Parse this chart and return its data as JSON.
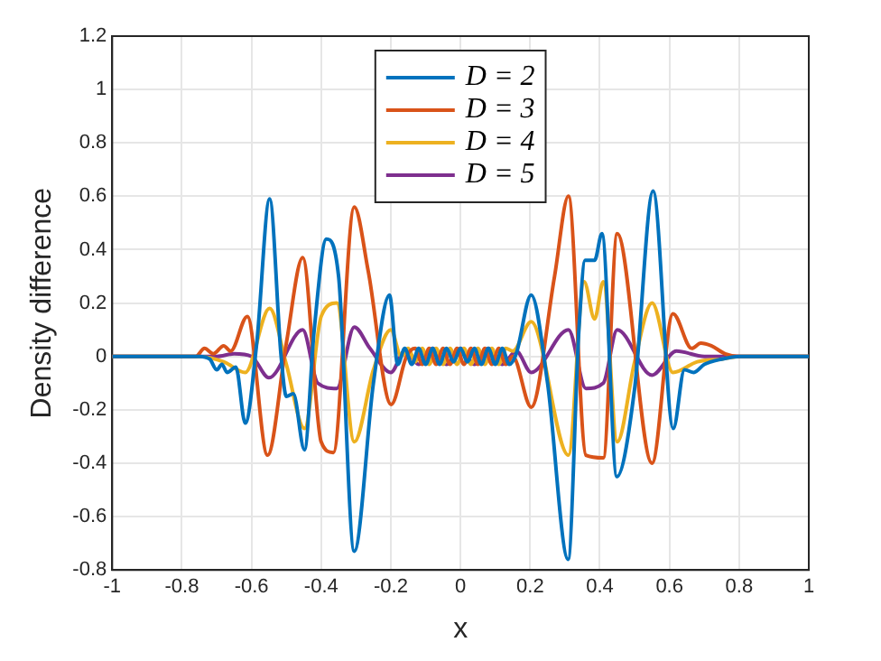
{
  "chart_data": {
    "type": "line",
    "xlabel": "x",
    "ylabel": "Density difference",
    "xlim": [
      -1,
      1
    ],
    "ylim": [
      -0.8,
      1.2
    ],
    "xticks": [
      -1,
      -0.8,
      -0.6,
      -0.4,
      -0.2,
      0,
      0.2,
      0.4,
      0.6,
      0.8,
      1
    ],
    "yticks": [
      -0.8,
      -0.6,
      -0.4,
      -0.2,
      0,
      0.2,
      0.4,
      0.6,
      0.8,
      1,
      1.2
    ],
    "grid": true,
    "legend": "top",
    "marker": "none",
    "line_style": "solid",
    "series": [
      {
        "name": "D = 2",
        "color": "#0072bd",
        "x": [
          -1,
          -0.75,
          -0.72,
          -0.7,
          -0.685,
          -0.67,
          -0.645,
          -0.618,
          -0.585,
          -0.548,
          -0.515,
          -0.5,
          -0.48,
          -0.448,
          -0.42,
          -0.385,
          -0.35,
          -0.305,
          -0.25,
          -0.204,
          -0.18,
          -0.16,
          -0.14,
          -0.12,
          -0.1,
          -0.08,
          -0.06,
          -0.04,
          -0.02,
          0,
          0.02,
          0.04,
          0.06,
          0.08,
          0.1,
          0.12,
          0.14,
          0.16,
          0.203,
          0.25,
          0.309,
          0.34,
          0.358,
          0.385,
          0.406,
          0.449,
          0.5,
          0.553,
          0.611,
          0.643,
          0.67,
          0.7,
          0.75,
          0.8,
          1
        ],
        "values": [
          0,
          0,
          -0.01,
          -0.05,
          -0.03,
          -0.06,
          -0.04,
          -0.25,
          0.05,
          0.59,
          0,
          -0.15,
          -0.14,
          -0.35,
          0.1,
          0.44,
          0.3,
          -0.73,
          -0.1,
          0.23,
          -0.03,
          0.03,
          -0.03,
          0.03,
          -0.03,
          0.03,
          -0.03,
          0.03,
          -0.02,
          0.03,
          -0.02,
          0.03,
          -0.03,
          0.03,
          -0.03,
          0.03,
          -0.03,
          0.01,
          0.23,
          -0.1,
          -0.76,
          0.1,
          0.36,
          0.36,
          0.46,
          -0.45,
          -0.12,
          0.62,
          -0.27,
          -0.05,
          -0.06,
          -0.03,
          -0.01,
          0,
          0
        ]
      },
      {
        "name": "D = 3",
        "color": "#d95319",
        "x": [
          -1,
          -0.76,
          -0.735,
          -0.71,
          -0.68,
          -0.66,
          -0.612,
          -0.554,
          -0.5,
          -0.453,
          -0.4,
          -0.365,
          -0.305,
          -0.265,
          -0.199,
          -0.155,
          -0.13,
          -0.11,
          -0.09,
          -0.07,
          -0.05,
          -0.03,
          -0.01,
          0.01,
          0.03,
          0.05,
          0.07,
          0.09,
          0.11,
          0.13,
          0.15,
          0.203,
          0.27,
          0.31,
          0.36,
          0.41,
          0.45,
          0.55,
          0.61,
          0.664,
          0.69,
          0.72,
          0.76,
          0.8,
          1
        ],
        "values": [
          0,
          0,
          0.03,
          0.01,
          0.04,
          0.02,
          0.15,
          -0.37,
          0.05,
          0.37,
          -0.32,
          -0.36,
          0.56,
          0.32,
          -0.18,
          0,
          0.03,
          -0.03,
          0.03,
          -0.03,
          0.03,
          -0.03,
          0.03,
          -0.03,
          0.03,
          -0.03,
          0.03,
          -0.03,
          0.03,
          -0.03,
          0,
          -0.19,
          0.3,
          0.6,
          -0.37,
          -0.38,
          0.46,
          -0.4,
          0.16,
          0.03,
          0.05,
          0.04,
          0.01,
          0,
          0
        ]
      },
      {
        "name": "D = 4",
        "color": "#edb120",
        "x": [
          -1,
          -0.75,
          -0.68,
          -0.618,
          -0.548,
          -0.5,
          -0.448,
          -0.4,
          -0.355,
          -0.305,
          -0.25,
          -0.2,
          -0.17,
          -0.15,
          -0.13,
          -0.11,
          -0.09,
          -0.07,
          -0.05,
          -0.03,
          -0.01,
          0.01,
          0.03,
          0.05,
          0.07,
          0.09,
          0.11,
          0.13,
          0.15,
          0.203,
          0.31,
          0.355,
          0.385,
          0.41,
          0.45,
          0.5,
          0.55,
          0.61,
          0.68,
          0.75,
          0.8,
          1
        ],
        "values": [
          0,
          0,
          -0.02,
          -0.06,
          0.18,
          -0.03,
          -0.27,
          0.15,
          0.2,
          -0.32,
          -0.05,
          0.1,
          0,
          0.03,
          -0.02,
          0.03,
          -0.03,
          0.03,
          -0.03,
          0.03,
          -0.03,
          0.03,
          -0.03,
          0.03,
          -0.03,
          0.03,
          -0.03,
          0.03,
          0.02,
          0.13,
          -0.37,
          0.28,
          0.14,
          0.28,
          -0.32,
          -0.02,
          0.2,
          -0.06,
          -0.02,
          -0.01,
          0,
          0
        ]
      },
      {
        "name": "D = 5",
        "color": "#7e2f8e",
        "x": [
          -1,
          -0.7,
          -0.65,
          -0.6,
          -0.55,
          -0.453,
          -0.41,
          -0.355,
          -0.305,
          -0.26,
          -0.2,
          -0.16,
          -0.12,
          -0.08,
          -0.04,
          0,
          0.04,
          0.08,
          0.12,
          0.16,
          0.203,
          0.31,
          0.36,
          0.41,
          0.45,
          0.55,
          0.62,
          0.7,
          1
        ],
        "values": [
          0,
          0,
          0.01,
          0,
          -0.08,
          0.1,
          -0.1,
          -0.12,
          0.11,
          0.03,
          -0.06,
          0.02,
          -0.03,
          0.03,
          -0.03,
          0.03,
          -0.03,
          0.03,
          -0.03,
          0.02,
          -0.06,
          0.1,
          -0.12,
          -0.1,
          0.1,
          -0.07,
          0.02,
          0,
          0
        ]
      }
    ]
  }
}
